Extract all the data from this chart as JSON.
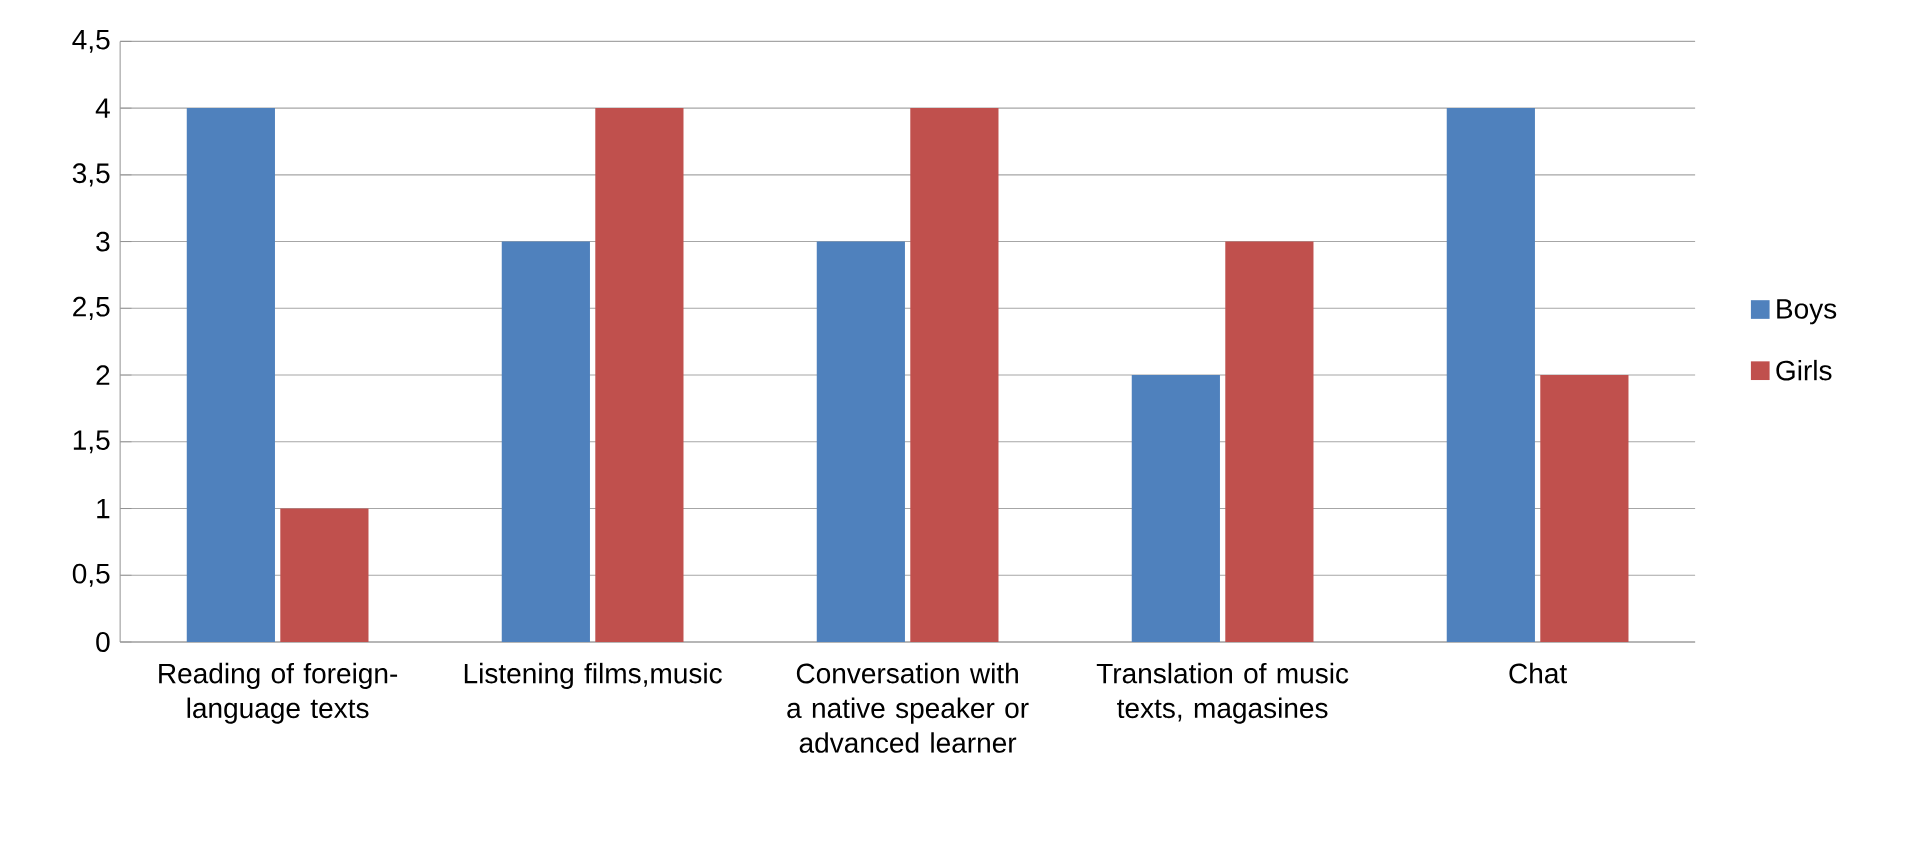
{
  "chart_data": {
    "type": "bar",
    "categories": [
      "Reading of foreign-language texts",
      "Listening films,music",
      "Conversation with a native speaker or advanced learner",
      "Translation of music texts, magasines",
      "Chat"
    ],
    "series": [
      {
        "name": "Boys",
        "color": "#4f81bd",
        "values": [
          4,
          3,
          3,
          2,
          4
        ]
      },
      {
        "name": "Girls",
        "color": "#c0504d",
        "values": [
          1,
          4,
          4,
          3,
          2
        ]
      }
    ],
    "ylim": [
      0,
      4.5
    ],
    "yticks": [
      0,
      {
        "value": 0.5,
        "label": "0,5"
      },
      1,
      {
        "value": 1.5,
        "label": "1,5"
      },
      2,
      {
        "value": 2.5,
        "label": "2,5"
      },
      3,
      {
        "value": 3.5,
        "label": "3,5"
      },
      4,
      {
        "value": 4.5,
        "label": "4,5"
      }
    ],
    "grid": "y",
    "legend": "right"
  }
}
